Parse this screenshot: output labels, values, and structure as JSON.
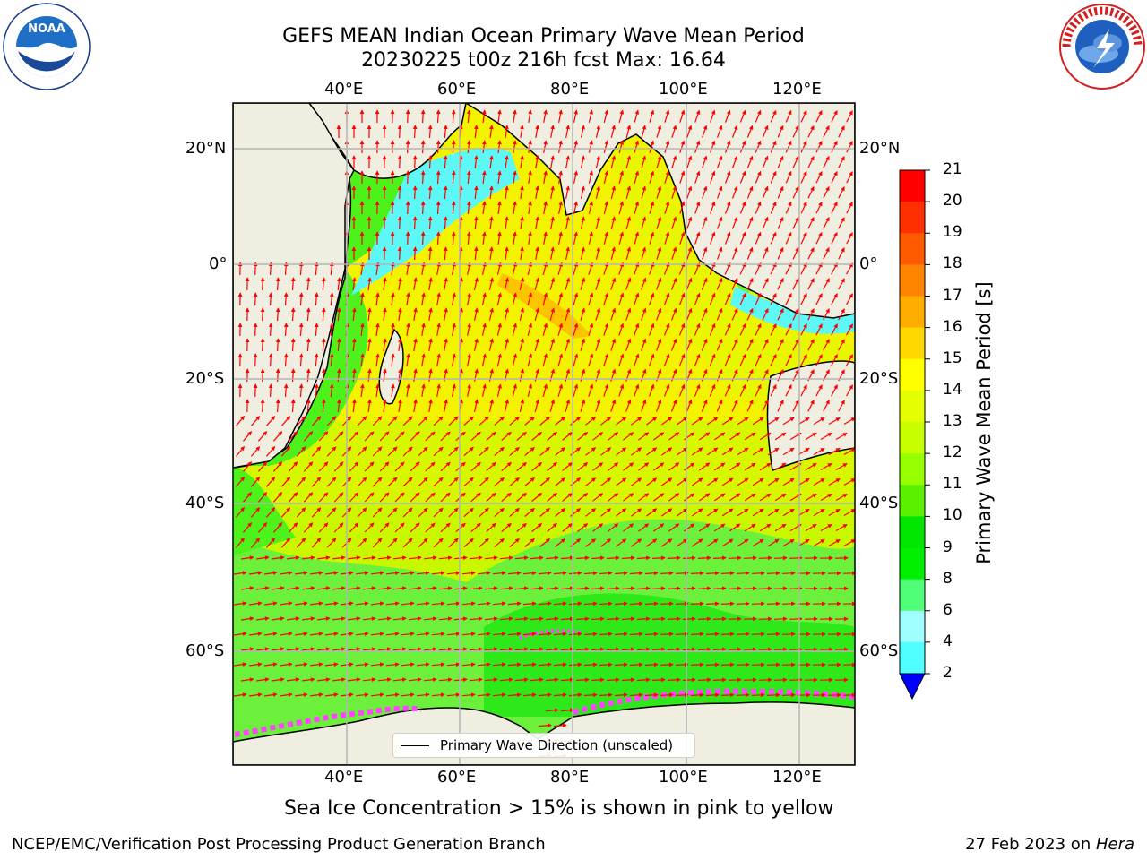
{
  "header": {
    "title_line1": "GEFS MEAN Indian Ocean Primary Wave Mean Period",
    "title_line2": "20230225 t00z 216h fcst   Max: 16.64",
    "left_logo": "NOAA",
    "right_logo": "NATIONAL WEATHER SERVICE"
  },
  "map": {
    "lon_labels": [
      "40°E",
      "60°E",
      "80°E",
      "100°E",
      "120°E"
    ],
    "lat_labels": [
      "20°N",
      "0°",
      "20°S",
      "40°S",
      "60°S"
    ],
    "legend_text": "Primary Wave Direction (unscaled)",
    "colors": {
      "land": "#efeee0",
      "ocean_yellow": "#f3f300",
      "ocean_yellowgreen": "#c8f700",
      "ocean_green": "#4cf21a",
      "ocean_lightgreen": "#6cf03c",
      "ocean_cyan": "#5df7f5",
      "orange": "#ffb400",
      "arrow": "#ff0000",
      "ice_pink": "#ff44ff"
    }
  },
  "colorbar": {
    "label": "Primary Wave Mean Period [s]",
    "ticks": [
      "21",
      "20",
      "19",
      "18",
      "17",
      "16",
      "15",
      "14",
      "13",
      "12",
      "11",
      "10",
      "9",
      "8",
      "6",
      "4",
      "2"
    ],
    "colors": [
      "#ff0000",
      "#ff3000",
      "#ff5a00",
      "#ff8400",
      "#ffae00",
      "#ffd800",
      "#ffff00",
      "#e6ff00",
      "#c8ff00",
      "#96ff00",
      "#5af000",
      "#00e600",
      "#00f000",
      "#50ff78",
      "#a0ffff",
      "#50ffff",
      "#00ffff",
      "#0078ff",
      "#0000ff"
    ]
  },
  "footer": {
    "subtitle": "Sea Ice Concentration > 15% is shown in pink to yellow",
    "left": "NCEP/EMC/Verification Post Processing Product Generation Branch",
    "right_date": "27 Feb 2023 on ",
    "right_machine": "Hera"
  }
}
